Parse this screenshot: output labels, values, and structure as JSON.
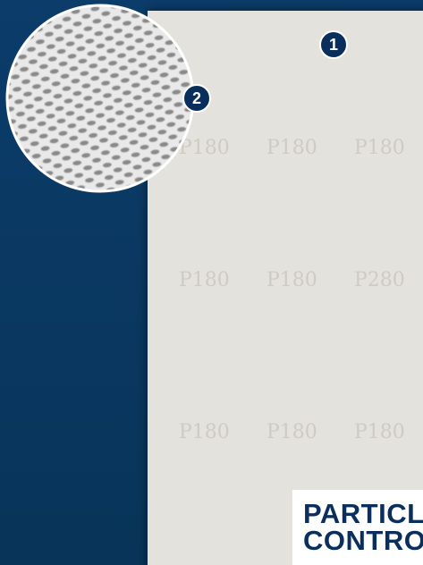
{
  "badges": [
    {
      "label": "1"
    },
    {
      "label": "2"
    }
  ],
  "heading": {
    "lines": [
      "PARTICL",
      "CONTRO"
    ]
  },
  "sheet_print": {
    "rows": [
      [
        "P180",
        "P180",
        "P180"
      ],
      [
        "P180",
        "P180",
        "P280"
      ],
      [
        "P180",
        "P180",
        "P180"
      ]
    ]
  }
}
